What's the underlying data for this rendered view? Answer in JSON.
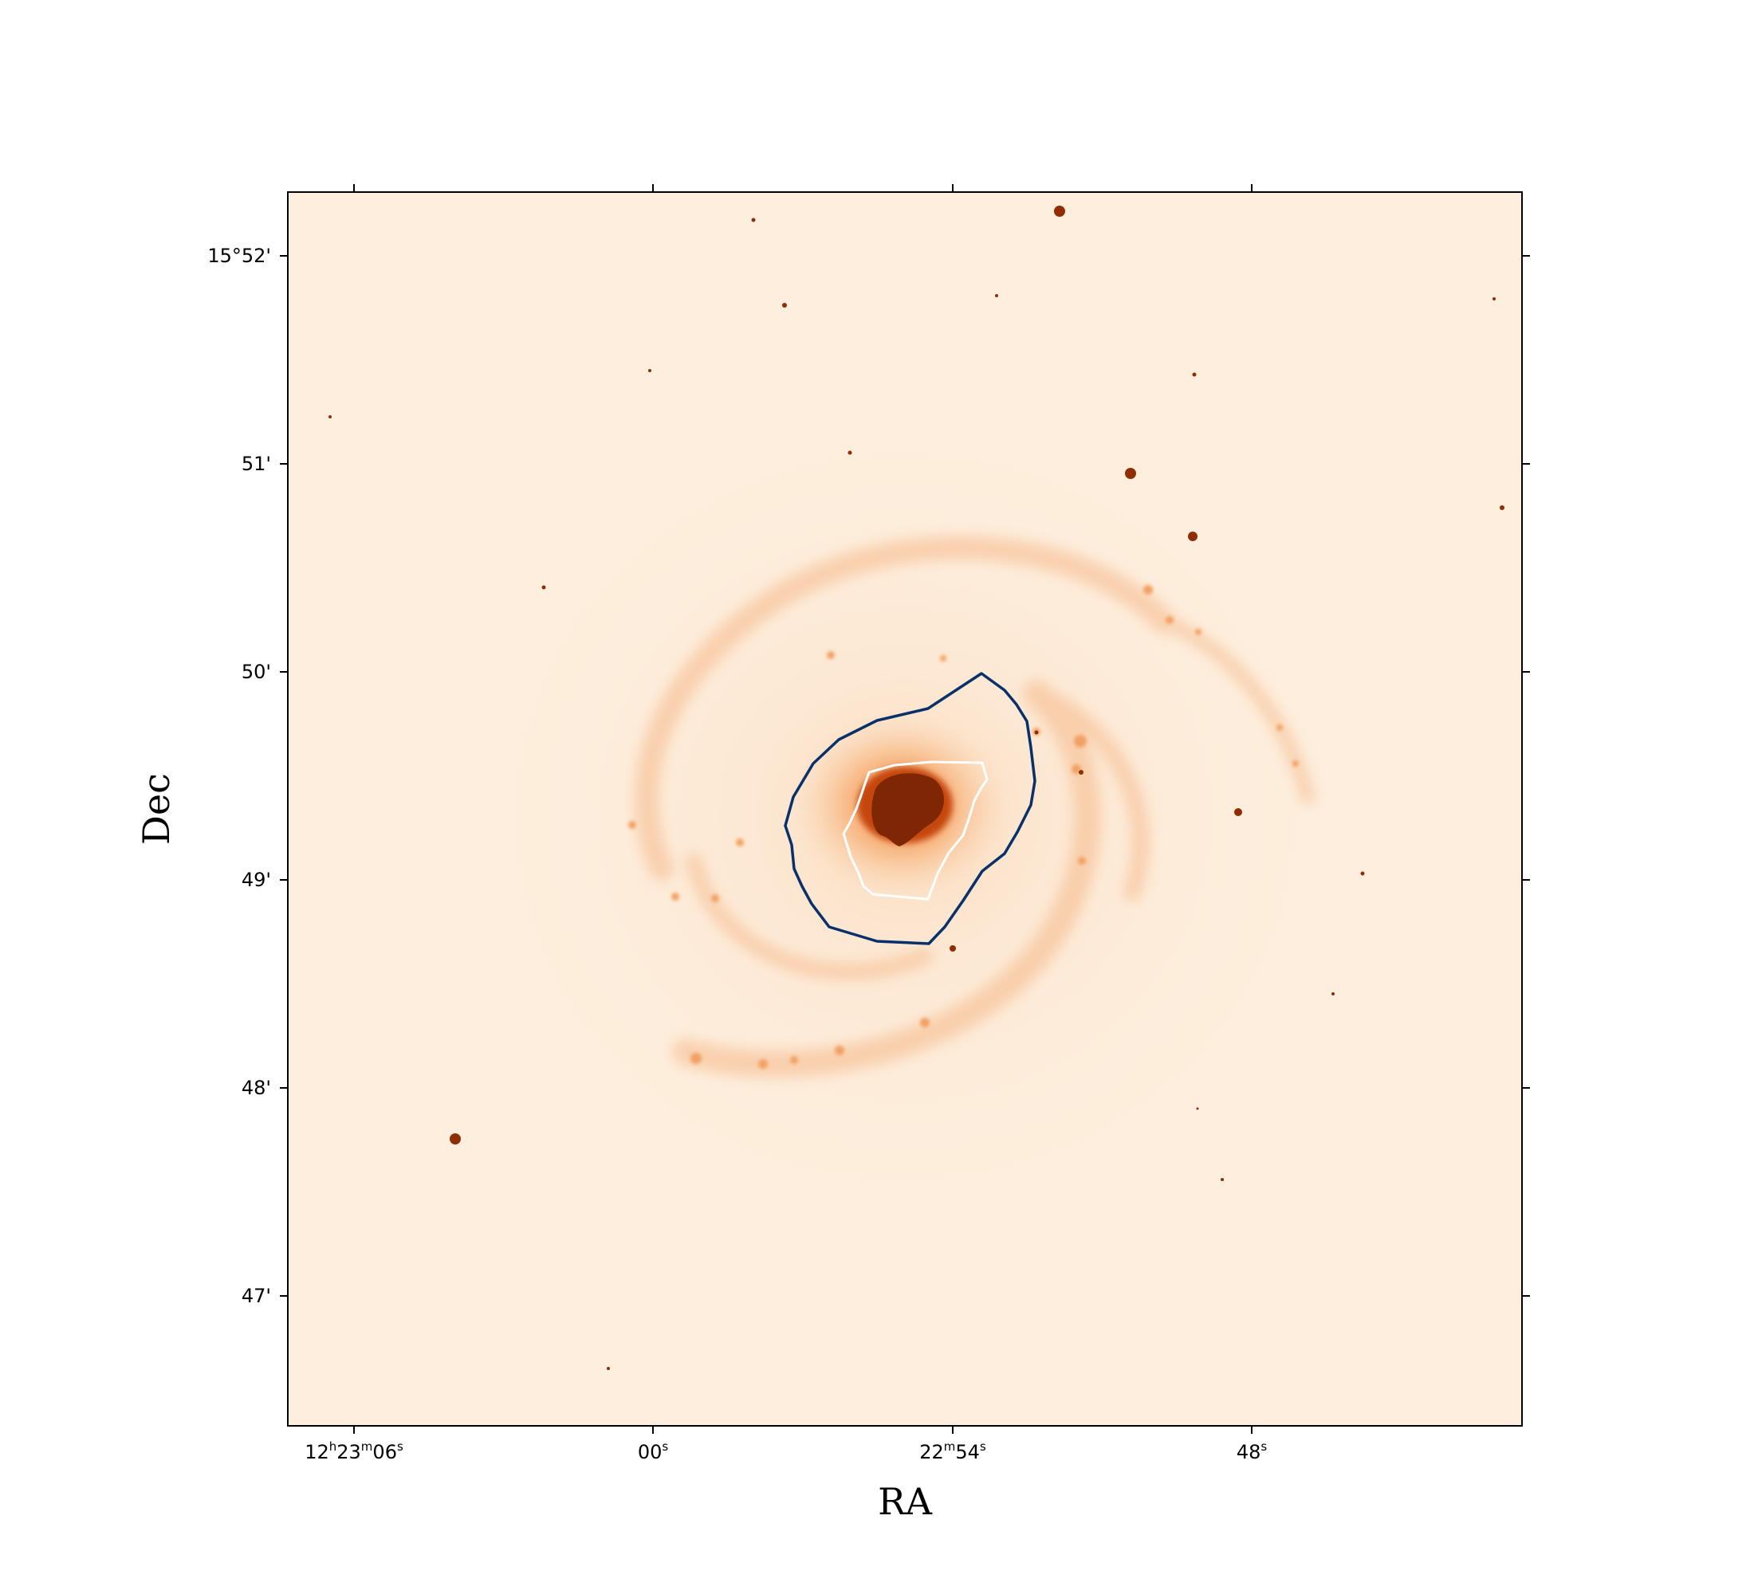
{
  "figure": {
    "xlabel": "RA",
    "ylabel": "Dec",
    "x_ticks": [
      {
        "h": "12",
        "m": "23",
        "s": "06",
        "ra_sec": 3786
      },
      {
        "s": "00",
        "ra_sec": 3780
      },
      {
        "m": "22",
        "s": "54",
        "ra_sec": 3774
      },
      {
        "s": "48",
        "ra_sec": 3768
      }
    ],
    "y_ticks": [
      {
        "label": "15°52'",
        "dec_arcmin": 52
      },
      {
        "label": "51'",
        "dec_arcmin": 51
      },
      {
        "label": "50'",
        "dec_arcmin": 50
      },
      {
        "label": "49'",
        "dec_arcmin": 49
      },
      {
        "label": "48'",
        "dec_arcmin": 48
      },
      {
        "label": "47'",
        "dec_arcmin": 47
      }
    ],
    "colormap": "Oranges",
    "colors": {
      "image_bg": "#fdeedd",
      "core": "#7f2704",
      "contour_outer": "#08306b",
      "contour_inner": "#ffffff"
    }
  }
}
